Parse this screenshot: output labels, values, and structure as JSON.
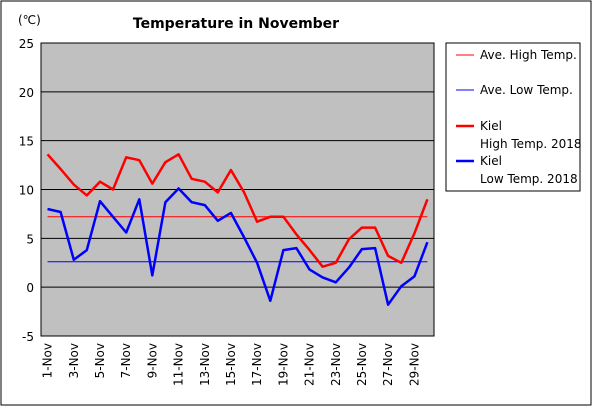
{
  "chart_data": {
    "type": "line",
    "title": "Temperature in November",
    "unit_label": "(℃)",
    "x": [
      "1-Nov",
      "2-Nov",
      "3-Nov",
      "4-Nov",
      "5-Nov",
      "6-Nov",
      "7-Nov",
      "8-Nov",
      "9-Nov",
      "10-Nov",
      "11-Nov",
      "12-Nov",
      "13-Nov",
      "14-Nov",
      "15-Nov",
      "16-Nov",
      "17-Nov",
      "18-Nov",
      "19-Nov",
      "20-Nov",
      "21-Nov",
      "22-Nov",
      "23-Nov",
      "24-Nov",
      "25-Nov",
      "26-Nov",
      "27-Nov",
      "28-Nov",
      "29-Nov",
      "30-Nov"
    ],
    "x_tick_labels": [
      "1-Nov",
      "3-Nov",
      "5-Nov",
      "7-Nov",
      "9-Nov",
      "11-Nov",
      "13-Nov",
      "15-Nov",
      "17-Nov",
      "19-Nov",
      "21-Nov",
      "23-Nov",
      "25-Nov",
      "27-Nov",
      "29-Nov"
    ],
    "ylim": [
      -5,
      25
    ],
    "y_ticks": [
      -5,
      0,
      5,
      10,
      15,
      20,
      25
    ],
    "grid": true,
    "legend_position": "right",
    "plot_background": "#c0c0c0",
    "series": [
      {
        "name": "Ave. High Temp.",
        "color": "#ff0000",
        "width": 1,
        "values": [
          7.2,
          7.2,
          7.2,
          7.2,
          7.2,
          7.2,
          7.2,
          7.2,
          7.2,
          7.2,
          7.2,
          7.2,
          7.2,
          7.2,
          7.2,
          7.2,
          7.2,
          7.2,
          7.2,
          7.2,
          7.2,
          7.2,
          7.2,
          7.2,
          7.2,
          7.2,
          7.2,
          7.2,
          7.2,
          7.2
        ]
      },
      {
        "name": "Ave. Low Temp.",
        "color": "#0000ff",
        "width": 1,
        "values": [
          2.6,
          2.6,
          2.6,
          2.6,
          2.6,
          2.6,
          2.6,
          2.6,
          2.6,
          2.6,
          2.6,
          2.6,
          2.6,
          2.6,
          2.6,
          2.6,
          2.6,
          2.6,
          2.6,
          2.6,
          2.6,
          2.6,
          2.6,
          2.6,
          2.6,
          2.6,
          2.6,
          2.6,
          2.6,
          2.6
        ]
      },
      {
        "name_lines": [
          "Kiel",
          "High Temp. 2018"
        ],
        "color": "#ff0000",
        "width": 2.5,
        "values": [
          13.6,
          12.1,
          10.5,
          9.4,
          10.8,
          10.0,
          13.3,
          13.0,
          10.6,
          12.8,
          13.6,
          11.1,
          10.8,
          9.7,
          12.0,
          9.7,
          6.7,
          7.2,
          7.2,
          5.4,
          3.8,
          2.1,
          2.5,
          4.9,
          6.1,
          6.1,
          3.2,
          2.5,
          5.5,
          9.0
        ]
      },
      {
        "name_lines": [
          "Kiel",
          "Low Temp. 2018"
        ],
        "color": "#0000ff",
        "width": 2.5,
        "values": [
          8.0,
          7.7,
          2.8,
          3.8,
          8.8,
          7.2,
          5.6,
          9.0,
          1.2,
          8.7,
          10.1,
          8.7,
          8.4,
          6.8,
          7.6,
          5.1,
          2.5,
          -1.4,
          3.8,
          4.0,
          1.8,
          1.0,
          0.5,
          2.0,
          3.9,
          4.0,
          -1.8,
          0.1,
          1.1,
          4.6
        ]
      }
    ]
  }
}
